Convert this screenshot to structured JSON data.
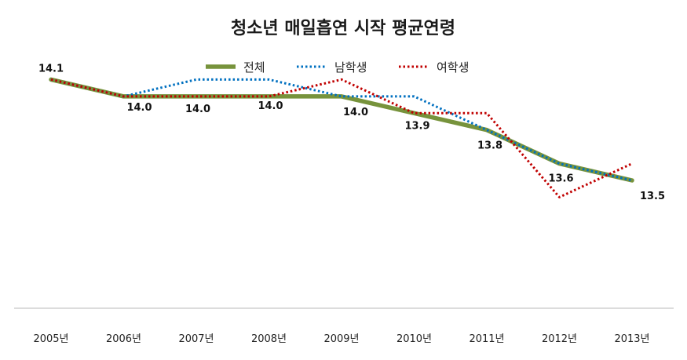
{
  "chart_data": {
    "type": "line",
    "title": "청소년 매일흡연 시작 평균연령",
    "xlabel": "",
    "ylabel": "",
    "categories": [
      "2005년",
      "2006년",
      "2007년",
      "2008년",
      "2009년",
      "2010년",
      "2011년",
      "2012년",
      "2013년"
    ],
    "ylim": [
      12.8,
      14.2
    ],
    "grid": false,
    "legend_position": "top",
    "series": [
      {
        "name": "전체",
        "color": "#77933C",
        "style": "solid",
        "values": [
          14.1,
          14.0,
          14.0,
          14.0,
          14.0,
          13.9,
          13.8,
          13.6,
          13.5
        ]
      },
      {
        "name": "남학생",
        "color": "#0070C0",
        "style": "dotted",
        "values": [
          14.1,
          14.0,
          14.1,
          14.1,
          14.0,
          14.0,
          13.8,
          13.6,
          13.5
        ]
      },
      {
        "name": "여학생",
        "color": "#C00000",
        "style": "dotted",
        "values": [
          14.1,
          14.0,
          14.0,
          14.0,
          14.1,
          13.9,
          13.9,
          13.4,
          13.6
        ]
      }
    ],
    "data_labels": [
      "14.1",
      "14.0",
      "14.0",
      "14.0",
      "14.0",
      "13.9",
      "13.8",
      "13.6",
      "13.5"
    ]
  }
}
